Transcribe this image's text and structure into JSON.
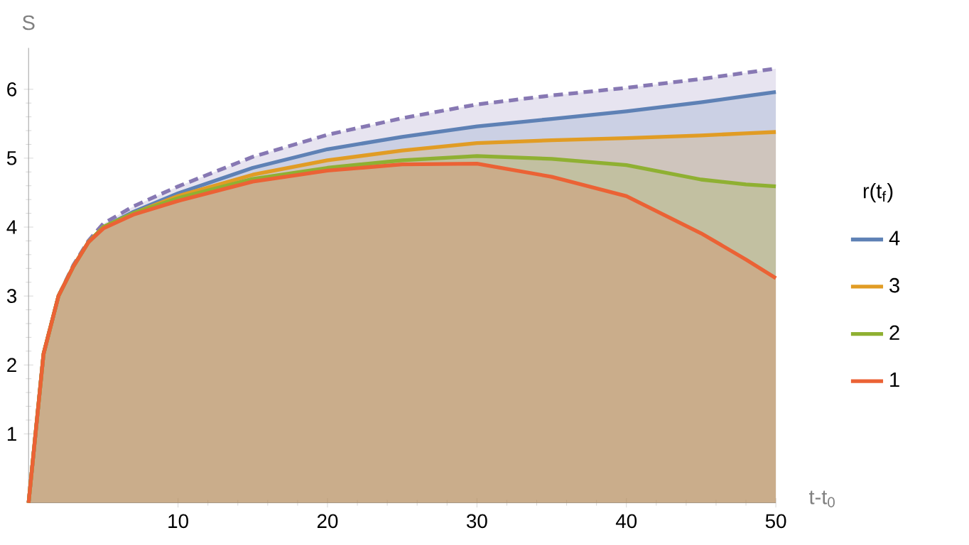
{
  "chart_data": {
    "type": "area",
    "xlabel": "t-t$_{0}$",
    "ylabel": "S",
    "legend_title": "r(t$_{f}$)",
    "legend": "right",
    "x": [
      0,
      1,
      2,
      3,
      4,
      5,
      7,
      10,
      15,
      20,
      25,
      30,
      35,
      40,
      45,
      48,
      50
    ],
    "series": [
      {
        "color": "#8778b3",
        "line_style": "dashed",
        "values": [
          0,
          2.16,
          3.0,
          3.45,
          3.8,
          4.05,
          4.3,
          4.59,
          5.02,
          5.34,
          5.58,
          5.78,
          5.91,
          6.02,
          6.15,
          6.24,
          6.3
        ]
      },
      {
        "name": "4",
        "color": "#5e81b5",
        "values": [
          0,
          2.16,
          3.0,
          3.43,
          3.78,
          4.0,
          4.22,
          4.49,
          4.86,
          5.13,
          5.31,
          5.46,
          5.57,
          5.68,
          5.81,
          5.9,
          5.96
        ]
      },
      {
        "name": "3",
        "color": "#e19c24",
        "values": [
          0,
          2.16,
          3.0,
          3.43,
          3.78,
          4.0,
          4.2,
          4.45,
          4.76,
          4.97,
          5.11,
          5.22,
          5.26,
          5.29,
          5.33,
          5.36,
          5.38
        ]
      },
      {
        "name": "2",
        "color": "#8fb032",
        "values": [
          0,
          2.16,
          3.0,
          3.43,
          3.78,
          4.0,
          4.2,
          4.42,
          4.7,
          4.86,
          4.97,
          5.03,
          4.99,
          4.9,
          4.69,
          4.62,
          4.59
        ]
      },
      {
        "name": "1",
        "color": "#eb6235",
        "values": [
          0,
          2.16,
          3.0,
          3.43,
          3.78,
          3.98,
          4.18,
          4.38,
          4.66,
          4.82,
          4.91,
          4.92,
          4.73,
          4.45,
          3.91,
          3.53,
          3.26
        ]
      }
    ],
    "xlim": [
      0,
      50
    ],
    "ylim": [
      0,
      6.6
    ],
    "xticks": [
      10,
      20,
      30,
      40,
      50
    ],
    "yticks": [
      1,
      2,
      3,
      4,
      5,
      6
    ]
  }
}
